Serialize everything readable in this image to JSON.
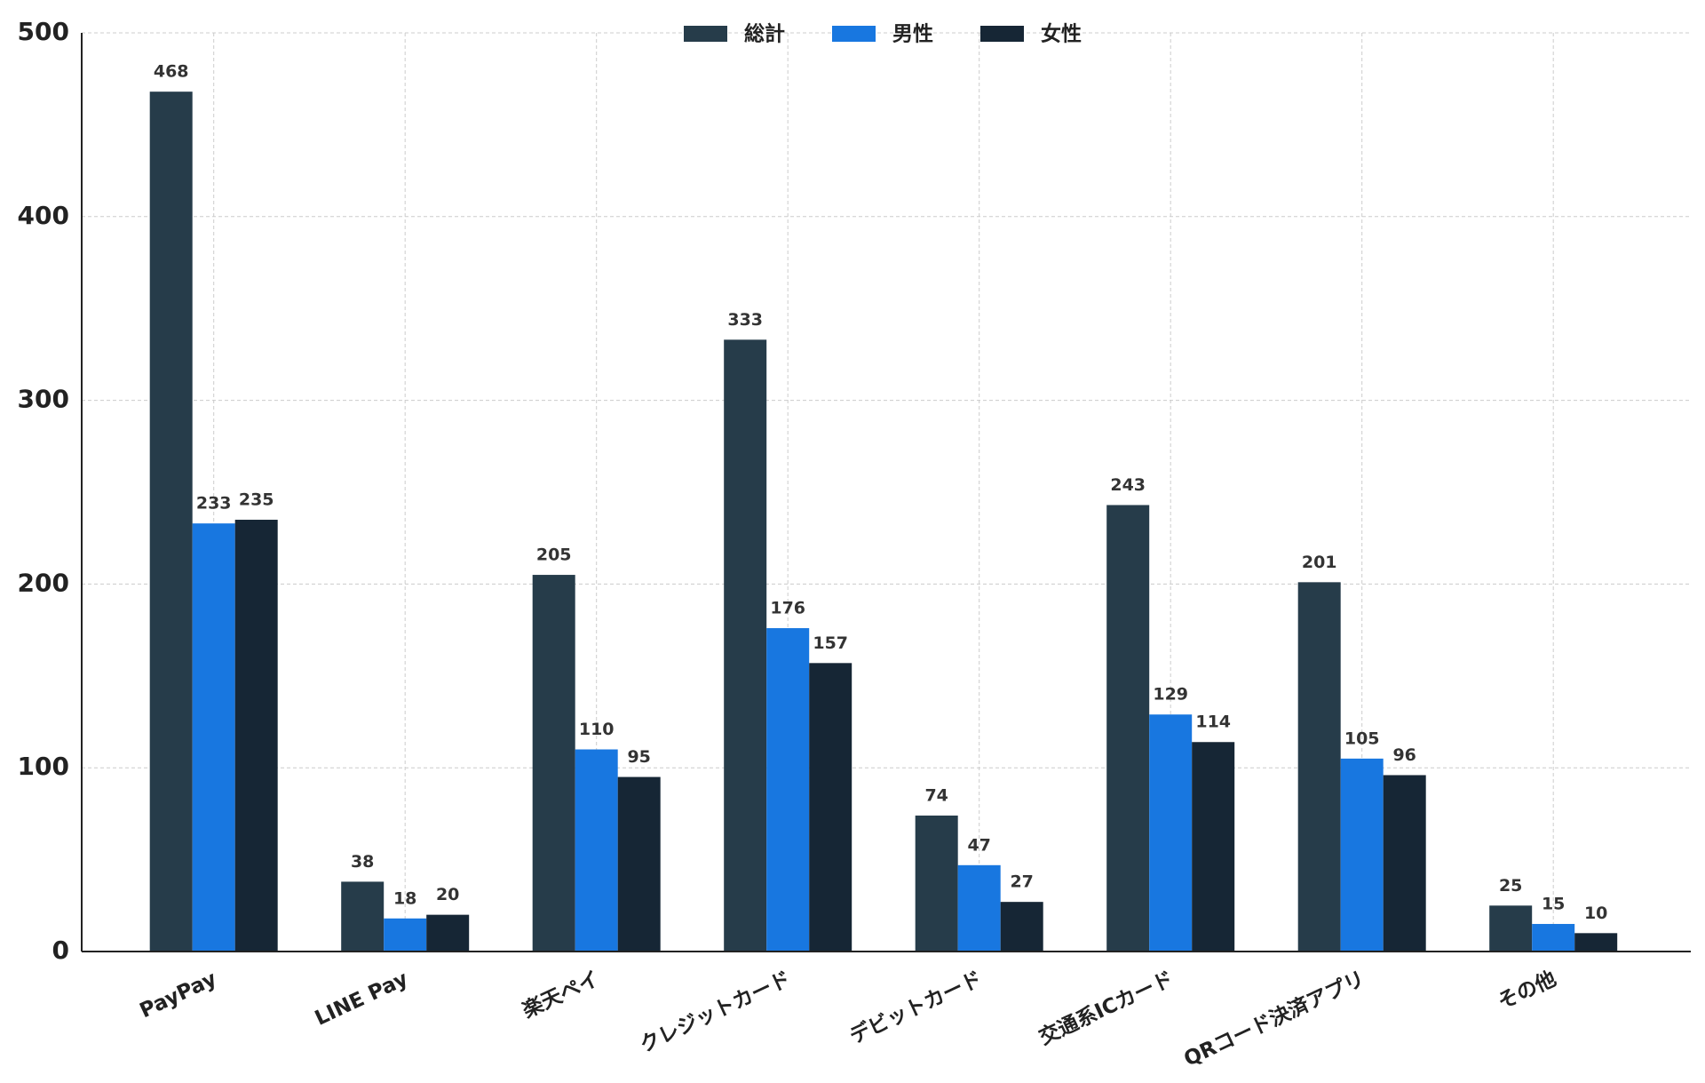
{
  "chart_data": {
    "type": "bar",
    "categories": [
      "PayPay",
      "LINE Pay",
      "楽天ペイ",
      "クレジットカード",
      "デビットカード",
      "交通系ICカード",
      "QRコード決済アプリ",
      "その他"
    ],
    "series": [
      {
        "name": "総計",
        "color": "#263c4a",
        "values": [
          468,
          38,
          205,
          333,
          74,
          243,
          201,
          25
        ]
      },
      {
        "name": "男性",
        "color": "#1877e0",
        "values": [
          233,
          18,
          110,
          176,
          47,
          129,
          105,
          15
        ]
      },
      {
        "name": "女性",
        "color": "#162635",
        "values": [
          235,
          20,
          95,
          157,
          27,
          114,
          96,
          10
        ]
      }
    ],
    "ylim": [
      0,
      500
    ],
    "yticks": [
      0,
      100,
      200,
      300,
      400,
      500
    ],
    "grid": true,
    "legend": "top"
  }
}
